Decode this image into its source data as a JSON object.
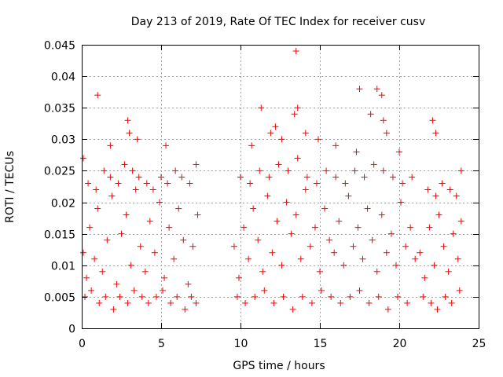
{
  "chart_data": {
    "type": "scatter",
    "title": "Day 213 of 2019, Rate Of TEC Index for receiver cusv",
    "xlabel": "GPS time / hours",
    "ylabel": "ROTI / TECUs",
    "xlim": [
      0,
      25
    ],
    "ylim": [
      0,
      0.045
    ],
    "xticks": [
      0,
      5,
      10,
      15,
      20,
      25
    ],
    "xtick_labels": [
      "0",
      "5",
      "10",
      "15",
      "20",
      "25"
    ],
    "yticks": [
      0,
      0.005,
      0.01,
      0.015,
      0.02,
      0.025,
      0.03,
      0.035,
      0.04,
      0.045
    ],
    "ytick_labels": [
      "0",
      "0.005",
      "0.01",
      "0.015",
      "0.02",
      "0.025",
      "0.03",
      "0.035",
      "0.04",
      "0.045"
    ],
    "grid": true,
    "marker": "plus",
    "color": "#ff0000",
    "series": [
      {
        "name": "ROTI",
        "x": [
          0.1,
          0.3,
          0.5,
          0.8,
          1.0,
          1.3,
          1.6,
          1.9,
          2.2,
          2.5,
          2.8,
          3.1,
          3.4,
          3.7,
          4.0,
          4.3,
          4.6,
          4.9,
          5.2,
          5.5,
          5.8,
          6.1,
          6.4,
          6.7,
          7.0,
          7.3,
          0.2,
          0.6,
          1.1,
          1.5,
          2.0,
          2.4,
          2.9,
          3.3,
          3.8,
          4.2,
          4.7,
          5.1,
          5.6,
          6.0,
          6.5,
          6.9,
          7.2,
          0.4,
          0.9,
          1.4,
          1.8,
          2.3,
          2.7,
          3.2,
          3.6,
          4.1,
          4.5,
          5.0,
          5.4,
          5.9,
          6.3,
          6.8,
          0.1,
          1.0,
          1.8,
          2.9,
          3.0,
          3.5,
          5.3,
          7.2,
          9.6,
          9.9,
          10.2,
          10.5,
          10.8,
          11.1,
          11.4,
          11.7,
          12.0,
          12.3,
          12.6,
          12.9,
          13.2,
          13.5,
          13.8,
          14.1,
          14.4,
          14.7,
          15.0,
          15.3,
          15.6,
          15.9,
          16.2,
          16.5,
          16.8,
          17.1,
          17.4,
          17.7,
          18.0,
          18.3,
          18.6,
          18.9,
          19.2,
          19.5,
          19.8,
          20.1,
          20.4,
          20.7,
          21.0,
          9.8,
          10.3,
          10.9,
          11.5,
          12.1,
          12.7,
          13.3,
          13.9,
          14.5,
          15.1,
          15.7,
          16.3,
          16.9,
          17.5,
          18.1,
          18.7,
          19.3,
          19.9,
          20.5,
          10.0,
          10.6,
          11.2,
          11.8,
          12.4,
          13.0,
          13.6,
          14.2,
          14.8,
          15.4,
          16.0,
          16.6,
          17.2,
          17.8,
          18.4,
          19.0,
          19.6,
          20.2,
          20.8,
          10.7,
          11.3,
          11.9,
          12.2,
          12.6,
          13.4,
          13.5,
          13.6,
          14.1,
          14.9,
          16.0,
          17.3,
          17.5,
          18.2,
          18.6,
          18.9,
          19.0,
          19.2,
          20.0,
          21.3,
          21.6,
          21.9,
          22.2,
          22.5,
          22.8,
          23.1,
          23.4,
          23.7,
          23.9,
          21.5,
          22.0,
          22.4,
          22.9,
          23.3,
          23.8,
          21.8,
          22.3,
          22.7,
          23.2,
          23.6,
          22.1,
          22.3,
          23.9
        ],
        "y": [
          0.012,
          0.008,
          0.016,
          0.011,
          0.019,
          0.009,
          0.014,
          0.021,
          0.007,
          0.015,
          0.018,
          0.01,
          0.022,
          0.013,
          0.009,
          0.017,
          0.012,
          0.02,
          0.008,
          0.016,
          0.011,
          0.019,
          0.014,
          0.007,
          0.013,
          0.018,
          0.005,
          0.006,
          0.004,
          0.005,
          0.003,
          0.005,
          0.004,
          0.006,
          0.005,
          0.004,
          0.005,
          0.006,
          0.004,
          0.005,
          0.003,
          0.005,
          0.004,
          0.023,
          0.022,
          0.025,
          0.024,
          0.023,
          0.026,
          0.025,
          0.024,
          0.023,
          0.022,
          0.024,
          0.023,
          0.025,
          0.024,
          0.023,
          0.027,
          0.037,
          0.029,
          0.033,
          0.031,
          0.03,
          0.029,
          0.026,
          0.013,
          0.008,
          0.016,
          0.011,
          0.019,
          0.014,
          0.009,
          0.021,
          0.012,
          0.017,
          0.01,
          0.02,
          0.015,
          0.018,
          0.011,
          0.022,
          0.013,
          0.016,
          0.009,
          0.019,
          0.014,
          0.012,
          0.017,
          0.01,
          0.021,
          0.013,
          0.016,
          0.011,
          0.019,
          0.014,
          0.009,
          0.018,
          0.012,
          0.015,
          0.01,
          0.02,
          0.013,
          0.016,
          0.011,
          0.005,
          0.004,
          0.005,
          0.006,
          0.004,
          0.005,
          0.003,
          0.005,
          0.004,
          0.006,
          0.005,
          0.004,
          0.005,
          0.006,
          0.004,
          0.005,
          0.003,
          0.005,
          0.004,
          0.024,
          0.023,
          0.025,
          0.024,
          0.026,
          0.025,
          0.027,
          0.024,
          0.023,
          0.025,
          0.024,
          0.023,
          0.025,
          0.024,
          0.026,
          0.025,
          0.024,
          0.023,
          0.024,
          0.029,
          0.035,
          0.031,
          0.032,
          0.03,
          0.034,
          0.044,
          0.035,
          0.031,
          0.03,
          0.029,
          0.028,
          0.038,
          0.034,
          0.038,
          0.037,
          0.033,
          0.031,
          0.028,
          0.012,
          0.008,
          0.016,
          0.01,
          0.018,
          0.013,
          0.009,
          0.015,
          0.011,
          0.017,
          0.005,
          0.004,
          0.003,
          0.005,
          0.004,
          0.006,
          0.022,
          0.021,
          0.023,
          0.022,
          0.021,
          0.033,
          0.031,
          0.025
        ]
      }
    ]
  }
}
